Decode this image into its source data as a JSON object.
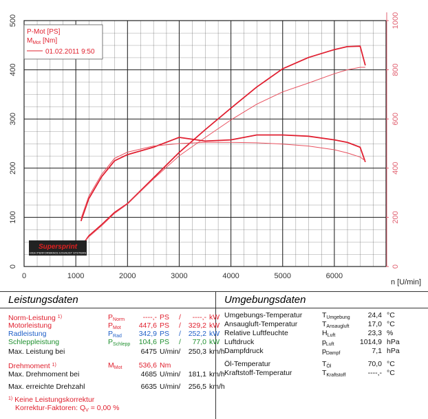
{
  "chart_data": {
    "type": "line",
    "x": [
      1100,
      1250,
      1500,
      1750,
      2000,
      2500,
      3000,
      3500,
      4000,
      4500,
      5000,
      5500,
      6000,
      6250,
      6500,
      6600
    ],
    "series": [
      {
        "color": "#e01f30",
        "width": 1.8,
        "values": [
          40,
          62,
          85,
          110,
          128,
          180,
          232,
          278,
          322,
          365,
          402,
          425,
          441,
          447,
          448,
          409
        ]
      },
      {
        "color": "#e8505e",
        "width": 1,
        "values": [
          42,
          60,
          83,
          108,
          127,
          178,
          225,
          262,
          298,
          330,
          355,
          373,
          392,
          400,
          405,
          405
        ]
      },
      {
        "color": "#e01f30",
        "width": 1.8,
        "axis": "y2",
        "values": [
          185,
          275,
          365,
          430,
          455,
          485,
          525,
          510,
          515,
          535,
          535,
          530,
          515,
          505,
          485,
          425
        ]
      },
      {
        "color": "#e8505e",
        "width": 1,
        "axis": "y2",
        "values": [
          195,
          285,
          375,
          440,
          465,
          490,
          500,
          505,
          505,
          503,
          498,
          490,
          475,
          462,
          445,
          430
        ]
      }
    ],
    "x_label": "n [U/min]",
    "xlim": [
      0,
      7000
    ],
    "xticks": [
      0,
      1000,
      2000,
      3000,
      4000,
      5000,
      6000
    ],
    "ylim": [
      0,
      500
    ],
    "yticks": [
      0,
      100,
      200,
      300,
      400,
      500
    ],
    "y2lim": [
      0,
      1000
    ],
    "y2ticks": [
      0,
      200,
      400,
      600,
      800,
      1000
    ],
    "grid": true,
    "legend": {
      "power": "P-Mot [PS]",
      "torque_symbol": "M",
      "torque_sub": "Mot",
      "torque_unit": "[Nm]",
      "run": "01.02.2011 9:50"
    },
    "logo": {
      "name": "Supersprint",
      "tagline": "HIGH PERFORMANCE EXHAUST SYSTEMS"
    }
  },
  "tables": {
    "left": {
      "title": "Leistungsdaten",
      "rows": [
        {
          "label": "Norm-Leistung",
          "note": "1)",
          "sym": "P",
          "sub": "Norm",
          "v1": "----,-",
          "u1": "PS",
          "sep": "/",
          "v2": "----,-",
          "u2": "kW",
          "color": "#e0202e"
        },
        {
          "label": "Motorleistung",
          "sym": "P",
          "sub": "Mot",
          "v1": "447,6",
          "u1": "PS",
          "sep": "/",
          "v2": "329,2",
          "u2": "kW",
          "color": "#e0202e"
        },
        {
          "label": "Radleistung",
          "sym": "P",
          "sub": "Rad",
          "v1": "342,9",
          "u1": "PS",
          "sep": "/",
          "v2": "252,2",
          "u2": "kW",
          "color": "#2060c8"
        },
        {
          "label": "Schleppleistung",
          "sym": "P",
          "sub": "Schlepp",
          "v1": "104,6",
          "u1": "PS",
          "sep": "/",
          "v2": "77,0",
          "u2": "kW",
          "color": "#209030"
        },
        {
          "label": "Max. Leistung bei",
          "v1": "6475",
          "u1": "U/min/",
          "v2": "250,3",
          "u2": "km/h",
          "color": "#111111"
        },
        {
          "label": "Drehmoment",
          "note": "1)",
          "sym": "M",
          "sub": "Mot",
          "v1": "536,6",
          "u1": "Nm",
          "color": "#e0202e"
        },
        {
          "label": "Max. Drehmoment bei",
          "v1": "4685",
          "u1": "U/min/",
          "v2": "181,1",
          "u2": "km/h",
          "color": "#111111"
        },
        {
          "label": "Max. erreichte Drehzahl",
          "v1": "6635",
          "u1": "U/min/",
          "v2": "256,5",
          "u2": "km/h",
          "color": "#111111"
        }
      ],
      "footnote": {
        "note": "1)",
        "text": "Keine Leistungskorrektur"
      },
      "correction": {
        "label": "Korrektur-Faktoren:",
        "sym": "Q",
        "sub": "V",
        "eq": "=",
        "value": "0,00 %"
      }
    },
    "right": {
      "title": "Umgebungsdaten",
      "rows": [
        {
          "label": "Umgebungs-Temperatur",
          "sym": "T",
          "sub": "Umgebung",
          "v1": "24,4",
          "u1": "°C"
        },
        {
          "label": "Ansaugluft-Temperatur",
          "sym": "T",
          "sub": "Ansaugluft",
          "v1": "17,0",
          "u1": "°C"
        },
        {
          "label": "Relative Luftfeuchte",
          "sym": "H",
          "sub": "Luft",
          "v1": "23,3",
          "u1": "%"
        },
        {
          "label": "Luftdruck",
          "sym": "p",
          "sub": "Luft",
          "v1": "1014,9",
          "u1": "hPa"
        },
        {
          "label": "Dampfdruck",
          "sym": "p",
          "sub": "Dampf",
          "v1": "7,1",
          "u1": "hPa"
        },
        {
          "label": "Öl-Temperatur",
          "sym": "T",
          "sub": "Öl",
          "v1": "70,0",
          "u1": "°C"
        },
        {
          "label": "Kraftstoff-Temperatur",
          "sym": "T",
          "sub": "Kraftstoff",
          "v1": "----,-",
          "u1": "°C"
        }
      ]
    }
  }
}
